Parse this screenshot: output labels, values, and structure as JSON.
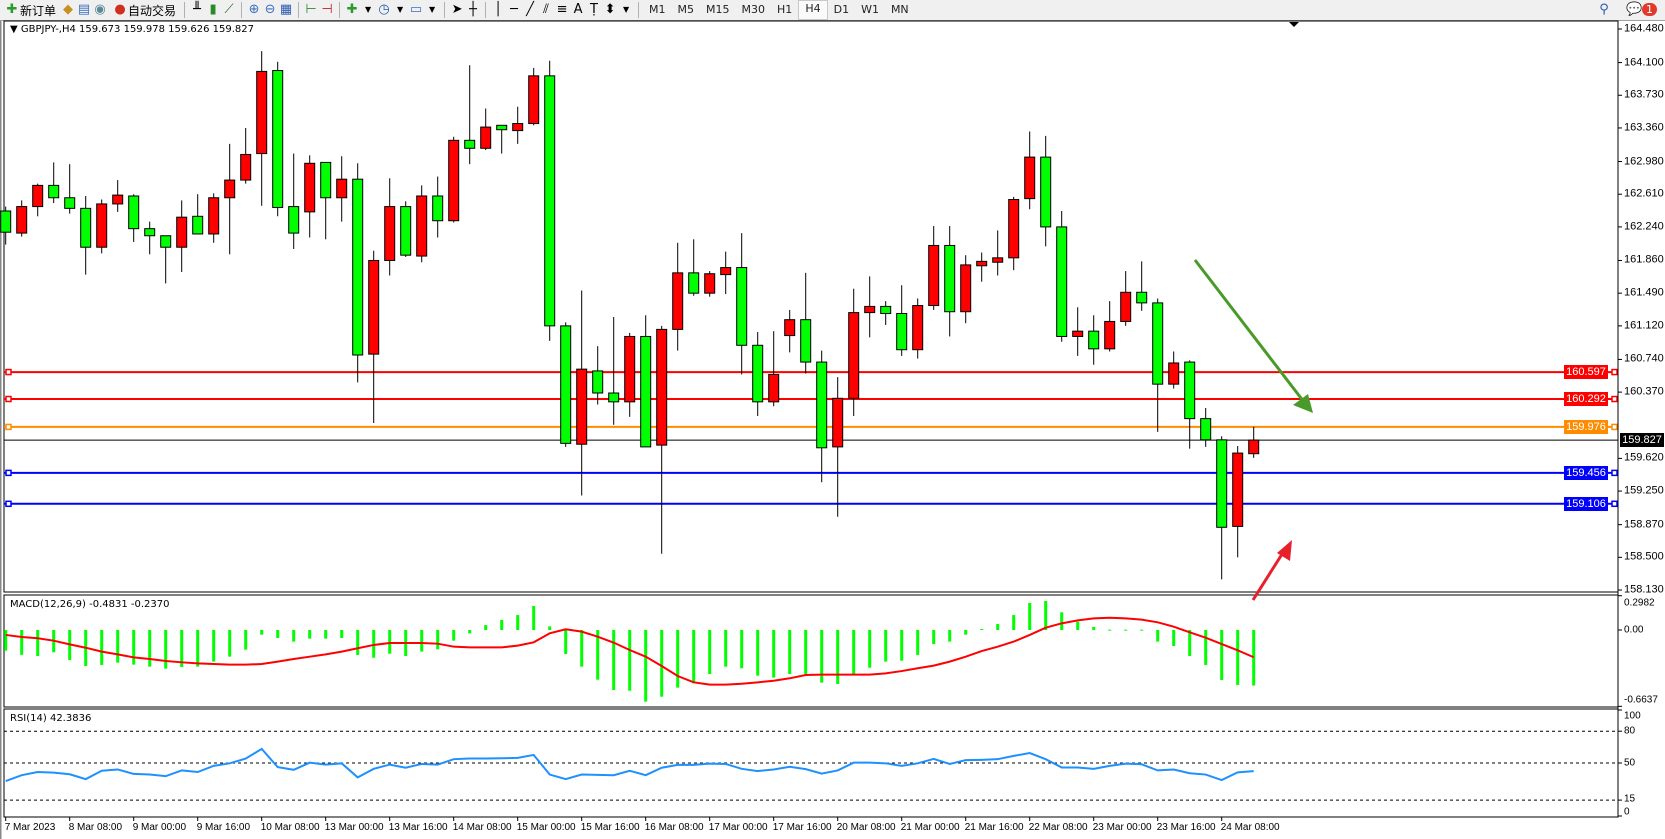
{
  "toolbar": {
    "new_order": "新订单",
    "auto_trading": "自动交易",
    "timeframes": [
      "M1",
      "M5",
      "M15",
      "M30",
      "H1",
      "H4",
      "D1",
      "W1",
      "MN"
    ],
    "active_timeframe": "H4",
    "notification_count": "1",
    "icons": [
      "new-order-icon",
      "market-watch-icon",
      "navigator-icon",
      "signals-icon",
      "auto-trading-icon",
      "bar-chart-icon",
      "candlestick-icon",
      "line-chart-icon",
      "zoom-in-icon",
      "zoom-out-icon",
      "tile-windows-icon",
      "auto-scroll-icon",
      "chart-shift-icon",
      "indicators-icon",
      "periods-icon",
      "templates-icon",
      "cursor-icon",
      "crosshair-icon",
      "vertical-line-icon",
      "horizontal-line-icon",
      "trendline-icon",
      "equidistant-channel-icon",
      "fibonacci-icon",
      "text-icon",
      "text-label-icon",
      "arrows-icon",
      "search-icon",
      "chat-icon"
    ]
  },
  "chart_data": [
    {
      "type": "candlestick",
      "header": "GBPJPY-,H4  159.673 159.978 159.626 159.827",
      "ylim": [
        158.13,
        164.48
      ],
      "yticks": [
        "164.480",
        "164.100",
        "163.730",
        "163.360",
        "162.980",
        "162.610",
        "162.240",
        "161.860",
        "161.490",
        "161.120",
        "160.740",
        "160.370",
        "159.620",
        "159.250",
        "158.870",
        "158.500",
        "158.130"
      ],
      "time_labels": [
        "7 Mar 2023",
        "8 Mar 08:00",
        "9 Mar 00:00",
        "9 Mar 16:00",
        "10 Mar 08:00",
        "13 Mar 00:00",
        "13 Mar 16:00",
        "14 Mar 08:00",
        "15 Mar 00:00",
        "15 Mar 16:00",
        "16 Mar 08:00",
        "17 Mar 00:00",
        "17 Mar 16:00",
        "20 Mar 08:00",
        "21 Mar 00:00",
        "21 Mar 16:00",
        "22 Mar 08:00",
        "23 Mar 00:00",
        "23 Mar 16:00",
        "24 Mar 08:00"
      ],
      "bull_color": "#ff0000",
      "bear_color": "#00ff00",
      "ohlc_columns": [
        "open",
        "high",
        "low",
        "close"
      ],
      "candles": [
        [
          162.42,
          162.47,
          162.04,
          162.18
        ],
        [
          162.17,
          162.54,
          162.13,
          162.47
        ],
        [
          162.47,
          162.73,
          162.36,
          162.71
        ],
        [
          162.71,
          162.97,
          162.51,
          162.57
        ],
        [
          162.57,
          162.95,
          162.39,
          162.45
        ],
        [
          162.45,
          162.59,
          161.7,
          162.01
        ],
        [
          162.01,
          162.55,
          161.94,
          162.5
        ],
        [
          162.5,
          162.77,
          162.41,
          162.6
        ],
        [
          162.59,
          162.61,
          162.07,
          162.22
        ],
        [
          162.22,
          162.3,
          161.93,
          162.14
        ],
        [
          162.14,
          162.14,
          161.6,
          162.01
        ],
        [
          162.01,
          162.54,
          161.73,
          162.35
        ],
        [
          162.36,
          162.61,
          162.16,
          162.16
        ],
        [
          162.16,
          162.62,
          162.06,
          162.57
        ],
        [
          162.57,
          163.18,
          161.93,
          162.77
        ],
        [
          162.77,
          163.36,
          162.73,
          163.06
        ],
        [
          163.07,
          164.23,
          162.48,
          164.0
        ],
        [
          164.01,
          164.11,
          162.36,
          162.46
        ],
        [
          162.47,
          163.07,
          161.99,
          162.17
        ],
        [
          162.41,
          163.05,
          162.12,
          162.96
        ],
        [
          162.97,
          162.97,
          162.1,
          162.57
        ],
        [
          162.57,
          163.04,
          162.3,
          162.78
        ],
        [
          162.78,
          162.96,
          160.48,
          160.79
        ],
        [
          160.8,
          161.97,
          160.02,
          161.86
        ],
        [
          161.86,
          162.79,
          161.69,
          162.47
        ],
        [
          162.47,
          162.53,
          161.9,
          161.92
        ],
        [
          161.91,
          162.71,
          161.84,
          162.59
        ],
        [
          162.59,
          162.81,
          162.12,
          162.31
        ],
        [
          162.31,
          163.26,
          162.29,
          163.22
        ],
        [
          163.22,
          164.07,
          162.95,
          163.13
        ],
        [
          163.13,
          163.58,
          163.11,
          163.37
        ],
        [
          163.39,
          163.39,
          163.07,
          163.34
        ],
        [
          163.33,
          163.6,
          163.18,
          163.41
        ],
        [
          163.41,
          164.04,
          163.39,
          163.95
        ],
        [
          163.95,
          164.12,
          160.95,
          161.12
        ],
        [
          161.12,
          161.16,
          159.75,
          159.79
        ],
        [
          159.78,
          161.52,
          159.2,
          160.63
        ],
        [
          160.61,
          160.89,
          160.23,
          160.36
        ],
        [
          160.36,
          161.22,
          160.0,
          160.26
        ],
        [
          160.26,
          161.04,
          160.09,
          161.0
        ],
        [
          161.0,
          161.24,
          159.75,
          159.75
        ],
        [
          159.77,
          161.12,
          158.54,
          161.08
        ],
        [
          161.08,
          162.06,
          160.84,
          161.72
        ],
        [
          161.72,
          162.1,
          161.46,
          161.49
        ],
        [
          161.49,
          161.74,
          161.45,
          161.71
        ],
        [
          161.7,
          161.96,
          161.48,
          161.78
        ],
        [
          161.78,
          162.17,
          160.57,
          160.9
        ],
        [
          160.9,
          161.05,
          160.1,
          160.26
        ],
        [
          160.26,
          161.06,
          160.21,
          160.57
        ],
        [
          161.01,
          161.3,
          160.82,
          161.19
        ],
        [
          161.19,
          161.72,
          160.58,
          160.71
        ],
        [
          160.71,
          160.84,
          159.35,
          159.74
        ],
        [
          159.75,
          160.54,
          158.96,
          160.3
        ],
        [
          160.3,
          161.54,
          160.1,
          161.27
        ],
        [
          161.27,
          161.68,
          160.99,
          161.34
        ],
        [
          161.34,
          161.4,
          161.13,
          161.26
        ],
        [
          161.26,
          161.58,
          160.78,
          160.85
        ],
        [
          160.85,
          161.43,
          160.75,
          161.35
        ],
        [
          161.35,
          162.25,
          161.3,
          162.03
        ],
        [
          162.03,
          162.25,
          161.0,
          161.28
        ],
        [
          161.28,
          161.92,
          161.15,
          161.81
        ],
        [
          161.8,
          161.95,
          161.62,
          161.85
        ],
        [
          161.84,
          162.2,
          161.69,
          161.89
        ],
        [
          161.89,
          162.58,
          161.75,
          162.55
        ],
        [
          162.56,
          163.32,
          162.44,
          163.03
        ],
        [
          163.03,
          163.27,
          162.02,
          162.24
        ],
        [
          162.24,
          162.42,
          160.94,
          161.0
        ],
        [
          161.0,
          161.33,
          160.78,
          161.06
        ],
        [
          161.06,
          161.24,
          160.68,
          160.86
        ],
        [
          160.86,
          161.4,
          160.83,
          161.17
        ],
        [
          161.17,
          161.74,
          161.12,
          161.5
        ],
        [
          161.5,
          161.85,
          161.29,
          161.38
        ],
        [
          161.38,
          161.43,
          159.92,
          160.46
        ],
        [
          160.46,
          160.83,
          160.41,
          160.7
        ],
        [
          160.71,
          160.73,
          159.73,
          160.07
        ],
        [
          160.07,
          160.19,
          159.75,
          159.83
        ],
        [
          159.83,
          159.87,
          158.25,
          158.84
        ],
        [
          158.85,
          159.76,
          158.5,
          159.68
        ],
        [
          159.673,
          159.978,
          159.626,
          159.827
        ]
      ],
      "horizontal_lines": [
        {
          "value": 160.597,
          "label": "160.597",
          "color": "#ff0000"
        },
        {
          "value": 160.292,
          "label": "160.292",
          "color": "#ff0000"
        },
        {
          "value": 159.976,
          "label": "159.976",
          "color": "#ff8c00"
        },
        {
          "value": 159.456,
          "label": "159.456",
          "color": "#0000ff"
        },
        {
          "value": 159.106,
          "label": "159.106",
          "color": "#0000ff"
        }
      ],
      "current_price": {
        "value": 159.827,
        "label": "159.827",
        "color": "#000000"
      },
      "annotations": [
        {
          "type": "arrow",
          "direction": "down-right",
          "color": "#4a9a2a"
        },
        {
          "type": "arrow",
          "direction": "up-right",
          "color": "#e8202a"
        }
      ]
    },
    {
      "type": "bar+line",
      "title": "MACD(12,26,9) -0.4831 -0.2370",
      "yticks": [
        "0.2982",
        "0.00",
        "-0.6637"
      ],
      "ylim": [
        -0.6637,
        0.2982
      ],
      "histogram_color": "#00ff00",
      "signal_color": "#ff0000",
      "histogram": [
        -0.179,
        -0.216,
        -0.226,
        -0.194,
        -0.261,
        -0.313,
        -0.304,
        -0.284,
        -0.301,
        -0.319,
        -0.336,
        -0.322,
        -0.319,
        -0.275,
        -0.232,
        -0.171,
        -0.041,
        -0.07,
        -0.101,
        -0.075,
        -0.075,
        -0.07,
        -0.217,
        -0.241,
        -0.206,
        -0.226,
        -0.188,
        -0.168,
        -0.093,
        -0.029,
        0.043,
        0.087,
        0.13,
        0.209,
        0.032,
        -0.209,
        -0.319,
        -0.432,
        -0.522,
        -0.528,
        -0.623,
        -0.58,
        -0.501,
        -0.464,
        -0.383,
        -0.319,
        -0.333,
        -0.397,
        -0.414,
        -0.383,
        -0.383,
        -0.458,
        -0.47,
        -0.383,
        -0.328,
        -0.275,
        -0.267,
        -0.217,
        -0.122,
        -0.101,
        -0.041,
        0.009,
        0.052,
        0.13,
        0.235,
        0.252,
        0.154,
        0.072,
        0.026,
        0.003,
        0.003,
        0.003,
        -0.101,
        -0.139,
        -0.226,
        -0.304,
        -0.435,
        -0.478,
        -0.4831
      ],
      "signal": [
        -0.043,
        -0.061,
        -0.072,
        -0.093,
        -0.125,
        -0.154,
        -0.188,
        -0.212,
        -0.238,
        -0.252,
        -0.27,
        -0.281,
        -0.29,
        -0.296,
        -0.301,
        -0.301,
        -0.296,
        -0.275,
        -0.252,
        -0.232,
        -0.212,
        -0.188,
        -0.159,
        -0.13,
        -0.113,
        -0.113,
        -0.113,
        -0.119,
        -0.145,
        -0.151,
        -0.151,
        -0.151,
        -0.136,
        -0.107,
        -0.029,
        0.006,
        -0.014,
        -0.058,
        -0.11,
        -0.174,
        -0.232,
        -0.313,
        -0.4,
        -0.455,
        -0.475,
        -0.475,
        -0.467,
        -0.455,
        -0.441,
        -0.42,
        -0.391,
        -0.388,
        -0.388,
        -0.388,
        -0.388,
        -0.377,
        -0.357,
        -0.333,
        -0.31,
        -0.275,
        -0.232,
        -0.183,
        -0.145,
        -0.101,
        -0.043,
        0.02,
        0.058,
        0.084,
        0.101,
        0.107,
        0.101,
        0.09,
        0.067,
        0.029,
        -0.02,
        -0.067,
        -0.122,
        -0.177,
        -0.237
      ]
    },
    {
      "type": "line",
      "title": "RSI(14) 42.3836",
      "yticks": [
        "100",
        "80",
        "50",
        "15",
        "0"
      ],
      "ylim": [
        0,
        100
      ],
      "levels": [
        80,
        50,
        15
      ],
      "line_color": "#1e90ff",
      "values": [
        33.0,
        38.5,
        41.5,
        40.9,
        39.4,
        34.8,
        42.7,
        43.9,
        39.7,
        39.1,
        37.6,
        43.0,
        41.5,
        47.3,
        49.7,
        54.2,
        63.3,
        46.1,
        43.6,
        50.3,
        48.5,
        49.7,
        36.4,
        44.5,
        48.5,
        45.5,
        49.1,
        48.5,
        53.6,
        54.2,
        54.2,
        54.5,
        54.8,
        57.6,
        39.1,
        34.8,
        39.1,
        38.8,
        38.5,
        42.7,
        38.5,
        45.5,
        48.2,
        48.2,
        49.4,
        49.1,
        44.5,
        42.4,
        43.9,
        46.4,
        44.2,
        40.0,
        43.0,
        50.3,
        50.3,
        49.7,
        47.3,
        49.7,
        53.9,
        49.1,
        52.7,
        53.0,
        53.6,
        56.7,
        59.4,
        53.6,
        45.8,
        45.8,
        44.5,
        47.3,
        49.4,
        48.8,
        43.0,
        43.9,
        40.3,
        39.1,
        33.9,
        41.2,
        42.3836
      ]
    }
  ]
}
